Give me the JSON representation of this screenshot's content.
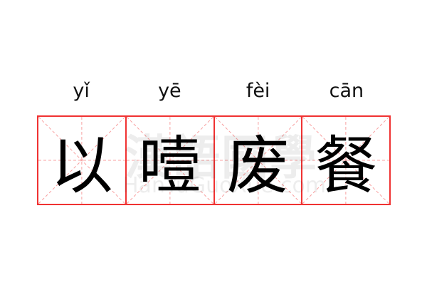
{
  "idiom": [
    {
      "pinyin": "yǐ",
      "hanzi": "以"
    },
    {
      "pinyin": "yē",
      "hanzi": "噎"
    },
    {
      "pinyin": "fèi",
      "hanzi": "废"
    },
    {
      "pinyin": "cān",
      "hanzi": "餐"
    }
  ],
  "watermark": {
    "chinese": "漢語國學",
    "latin": "HanYuGuoXue.com"
  },
  "colors": {
    "grid": "#f03232",
    "guide": "#f8a0a0",
    "text": "#000000"
  }
}
